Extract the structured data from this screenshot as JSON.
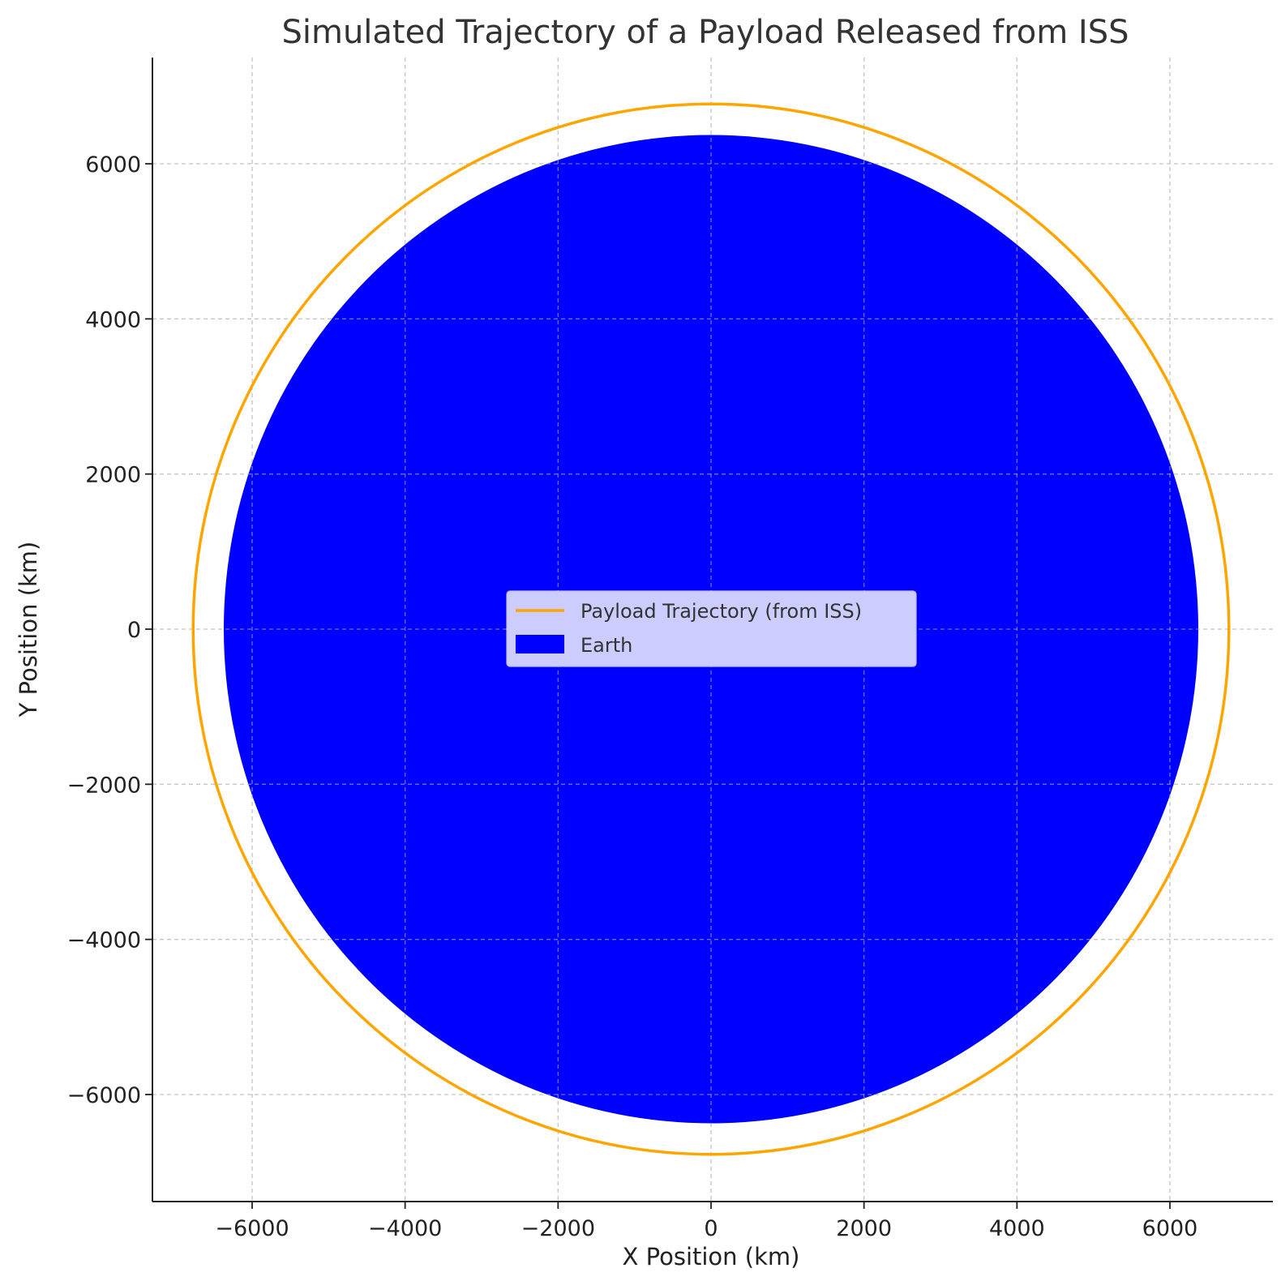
{
  "chart_data": {
    "type": "line",
    "title": "Simulated Trajectory of a Payload Released from ISS",
    "xlabel": "X Position (km)",
    "ylabel": "Y Position (km)",
    "xlim": [
      -7250,
      7250
    ],
    "ylim": [
      -7250,
      7250
    ],
    "xticks": [
      -6000,
      -4000,
      -2000,
      0,
      2000,
      4000,
      6000
    ],
    "yticks": [
      -6000,
      -4000,
      -2000,
      0,
      2000,
      4000,
      6000
    ],
    "xtick_labels": [
      "−6000",
      "−4000",
      "−2000",
      "0",
      "2000",
      "4000",
      "6000"
    ],
    "ytick_labels": [
      "−6000",
      "−4000",
      "−2000",
      "0",
      "2000",
      "4000",
      "6000"
    ],
    "grid": true,
    "legend_position": "center",
    "series": [
      {
        "name": "Payload Trajectory (from ISS)",
        "kind": "line",
        "shape": "circle",
        "center": [
          0,
          0
        ],
        "radius": 6771,
        "color": "#FFA500"
      },
      {
        "name": "Earth",
        "kind": "filled-circle",
        "center": [
          0,
          0
        ],
        "radius": 6371,
        "color": "#0000FF"
      }
    ]
  }
}
